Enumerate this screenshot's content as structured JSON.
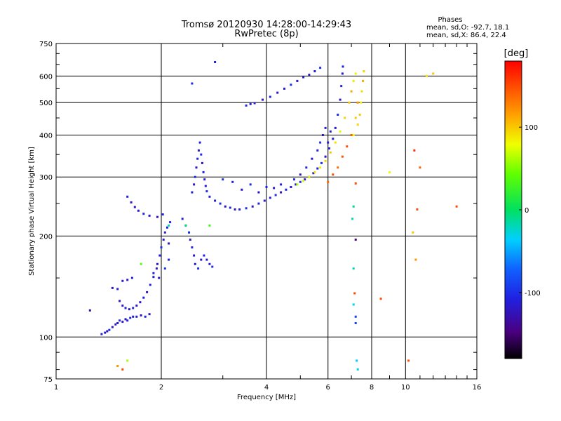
{
  "chart_data": {
    "type": "scatter",
    "title": "Tromsø 20120930 14:28:00-14:29:43",
    "subtitle": "RwPretec (8p)",
    "xlabel": "Frequency [MHz]",
    "ylabel": "Stationary phase Virtual Height [km]",
    "x_scale": "log",
    "y_scale": "log",
    "xlim": [
      1,
      16
    ],
    "ylim": [
      75,
      750
    ],
    "x_ticks": [
      1,
      2,
      4,
      6,
      8,
      10,
      16
    ],
    "x_tick_labels": [
      "1",
      "2",
      "4",
      "6",
      "8",
      "10",
      "16"
    ],
    "y_ticks": [
      75,
      100,
      200,
      300,
      400,
      500,
      600,
      750
    ],
    "y_tick_labels": [
      "75",
      "100",
      "200",
      "300",
      "400",
      "500",
      "600",
      "750"
    ],
    "grid": true,
    "stats": {
      "heading": "Phases",
      "line_o": "mean, sd,O: -92.7, 18.1",
      "line_x": "mean, sd,X:  86.4, 22.4"
    },
    "colorbar": {
      "label": "[deg]",
      "min": -180,
      "max": 180,
      "ticks": [
        -100,
        0,
        100
      ],
      "tick_labels": [
        "-100",
        "0",
        "100"
      ]
    },
    "point_format": [
      "frequency_MHz",
      "virtual_height_km",
      "phase_deg"
    ],
    "points": [
      [
        1.25,
        120,
        -130
      ],
      [
        1.35,
        102,
        -110
      ],
      [
        1.38,
        103,
        -115
      ],
      [
        1.4,
        104,
        -120
      ],
      [
        1.42,
        105,
        -100
      ],
      [
        1.45,
        107,
        -115
      ],
      [
        1.48,
        109,
        -110
      ],
      [
        1.5,
        110,
        -120
      ],
      [
        1.52,
        112,
        -105
      ],
      [
        1.55,
        111,
        -115
      ],
      [
        1.58,
        113,
        -120
      ],
      [
        1.6,
        112,
        -110
      ],
      [
        1.63,
        114,
        -100
      ],
      [
        1.66,
        115,
        -115
      ],
      [
        1.7,
        115,
        -110
      ],
      [
        1.75,
        116,
        -120
      ],
      [
        1.8,
        115,
        -105
      ],
      [
        1.85,
        117,
        -115
      ],
      [
        1.52,
        128,
        -120
      ],
      [
        1.55,
        124,
        -115
      ],
      [
        1.58,
        122,
        -110
      ],
      [
        1.62,
        121,
        -120
      ],
      [
        1.66,
        122,
        -105
      ],
      [
        1.7,
        124,
        -115
      ],
      [
        1.74,
        127,
        -120
      ],
      [
        1.78,
        131,
        -110
      ],
      [
        1.82,
        136,
        -115
      ],
      [
        1.86,
        143,
        -105
      ],
      [
        1.9,
        151,
        -115
      ],
      [
        1.94,
        160,
        -120
      ],
      [
        1.45,
        140,
        -120
      ],
      [
        1.5,
        139,
        -115
      ],
      [
        1.55,
        147,
        -110
      ],
      [
        1.6,
        148,
        -120
      ],
      [
        1.65,
        150,
        -105
      ],
      [
        1.6,
        262,
        -110
      ],
      [
        1.64,
        252,
        -115
      ],
      [
        1.68,
        244,
        -120
      ],
      [
        1.72,
        238,
        -110
      ],
      [
        1.78,
        233,
        -105
      ],
      [
        1.85,
        230,
        -115
      ],
      [
        1.95,
        228,
        -120
      ],
      [
        2.02,
        232,
        -110
      ],
      [
        1.9,
        155,
        -105
      ],
      [
        1.95,
        165,
        -115
      ],
      [
        1.98,
        175,
        -110
      ],
      [
        2.0,
        185,
        -100
      ],
      [
        2.03,
        195,
        -120
      ],
      [
        2.05,
        205,
        -115
      ],
      [
        2.08,
        212,
        -105
      ],
      [
        2.1,
        170,
        -110
      ],
      [
        1.97,
        150,
        -115
      ],
      [
        2.05,
        160,
        -100
      ],
      [
        2.1,
        190,
        -120
      ],
      [
        2.12,
        220,
        -105
      ],
      [
        2.3,
        225,
        -110
      ],
      [
        2.35,
        215,
        -115
      ],
      [
        2.4,
        205,
        -100
      ],
      [
        2.42,
        195,
        -120
      ],
      [
        2.45,
        185,
        -105
      ],
      [
        2.48,
        175,
        -115
      ],
      [
        2.5,
        165,
        -110
      ],
      [
        2.55,
        160,
        -100
      ],
      [
        2.6,
        170,
        -120
      ],
      [
        2.65,
        175,
        -105
      ],
      [
        2.7,
        170,
        -115
      ],
      [
        2.75,
        165,
        -110
      ],
      [
        2.8,
        162,
        -100
      ],
      [
        2.45,
        270,
        -110
      ],
      [
        2.48,
        285,
        -115
      ],
      [
        2.5,
        300,
        -100
      ],
      [
        2.52,
        320,
        -120
      ],
      [
        2.54,
        340,
        -105
      ],
      [
        2.56,
        360,
        -115
      ],
      [
        2.58,
        380,
        -110
      ],
      [
        2.6,
        350,
        -100
      ],
      [
        2.62,
        330,
        -120
      ],
      [
        2.64,
        310,
        -105
      ],
      [
        2.66,
        295,
        -115
      ],
      [
        2.68,
        282,
        -110
      ],
      [
        2.7,
        272,
        -100
      ],
      [
        2.75,
        262,
        -110
      ],
      [
        2.85,
        255,
        -115
      ],
      [
        2.95,
        250,
        -100
      ],
      [
        3.05,
        245,
        -120
      ],
      [
        3.15,
        243,
        -105
      ],
      [
        3.25,
        240,
        -115
      ],
      [
        3.35,
        240,
        -110
      ],
      [
        3.5,
        242,
        -100
      ],
      [
        3.65,
        245,
        -120
      ],
      [
        3.8,
        250,
        -105
      ],
      [
        3.95,
        255,
        -115
      ],
      [
        4.1,
        260,
        -110
      ],
      [
        4.25,
        265,
        -100
      ],
      [
        4.4,
        270,
        -120
      ],
      [
        4.55,
        275,
        -105
      ],
      [
        4.7,
        280,
        -115
      ],
      [
        4.85,
        285,
        -110
      ],
      [
        5.0,
        290,
        -100
      ],
      [
        5.15,
        295,
        -120
      ],
      [
        5.3,
        300,
        -105
      ],
      [
        5.45,
        308,
        -115
      ],
      [
        5.6,
        318,
        -110
      ],
      [
        5.75,
        330,
        -100
      ],
      [
        5.9,
        345,
        -120
      ],
      [
        6.05,
        365,
        -105
      ],
      [
        6.2,
        390,
        -115
      ],
      [
        6.3,
        420,
        -110
      ],
      [
        6.4,
        460,
        -100
      ],
      [
        6.5,
        510,
        -120
      ],
      [
        6.55,
        560,
        -105
      ],
      [
        6.6,
        610,
        -115
      ],
      [
        6.62,
        640,
        -110
      ],
      [
        3.0,
        295,
        -100
      ],
      [
        3.2,
        290,
        -110
      ],
      [
        3.4,
        275,
        -115
      ],
      [
        3.6,
        285,
        -100
      ],
      [
        3.8,
        270,
        -120
      ],
      [
        4.0,
        280,
        -105
      ],
      [
        4.2,
        278,
        -115
      ],
      [
        4.4,
        285,
        -110
      ],
      [
        4.8,
        295,
        -100
      ],
      [
        5.0,
        305,
        -120
      ],
      [
        5.2,
        320,
        -105
      ],
      [
        5.4,
        340,
        -115
      ],
      [
        5.6,
        360,
        -110
      ],
      [
        5.7,
        380,
        -100
      ],
      [
        5.8,
        400,
        -120
      ],
      [
        5.9,
        420,
        -105
      ],
      [
        6.0,
        380,
        -115
      ],
      [
        6.1,
        410,
        -110
      ],
      [
        3.5,
        490,
        -100
      ],
      [
        3.6,
        495,
        -110
      ],
      [
        3.7,
        498,
        -115
      ],
      [
        3.9,
        510,
        -120
      ],
      [
        4.1,
        520,
        -105
      ],
      [
        4.3,
        535,
        -115
      ],
      [
        4.5,
        550,
        -110
      ],
      [
        4.7,
        565,
        -100
      ],
      [
        4.9,
        580,
        -120
      ],
      [
        5.1,
        595,
        -105
      ],
      [
        5.3,
        605,
        -115
      ],
      [
        5.5,
        620,
        -110
      ],
      [
        5.7,
        635,
        -100
      ],
      [
        2.85,
        660,
        -110
      ],
      [
        2.45,
        570,
        -100
      ],
      [
        4.9,
        285,
        60
      ],
      [
        5.1,
        292,
        70
      ],
      [
        5.3,
        300,
        80
      ],
      [
        5.5,
        310,
        90
      ],
      [
        5.7,
        320,
        85
      ],
      [
        5.9,
        335,
        95
      ],
      [
        6.1,
        355,
        100
      ],
      [
        6.3,
        380,
        90
      ],
      [
        6.5,
        410,
        85
      ],
      [
        6.7,
        450,
        95
      ],
      [
        6.9,
        500,
        100
      ],
      [
        7.0,
        540,
        110
      ],
      [
        7.1,
        580,
        90
      ],
      [
        7.2,
        610,
        85
      ],
      [
        7.3,
        430,
        95
      ],
      [
        7.4,
        460,
        100
      ],
      [
        7.45,
        500,
        85
      ],
      [
        7.5,
        540,
        90
      ],
      [
        7.55,
        580,
        110
      ],
      [
        7.6,
        620,
        95
      ],
      [
        7.1,
        400,
        80
      ],
      [
        7.2,
        450,
        100
      ],
      [
        7.3,
        500,
        120
      ],
      [
        6.0,
        290,
        140
      ],
      [
        6.2,
        305,
        150
      ],
      [
        6.4,
        320,
        135
      ],
      [
        6.6,
        345,
        145
      ],
      [
        6.8,
        370,
        150
      ],
      [
        7.0,
        400,
        140
      ],
      [
        7.2,
        287,
        150
      ],
      [
        7.2,
        195,
        -150
      ],
      [
        7.1,
        245,
        -10
      ],
      [
        7.05,
        225,
        -20
      ],
      [
        7.15,
        135,
        150
      ],
      [
        7.1,
        125,
        -30
      ],
      [
        7.2,
        115,
        -90
      ],
      [
        7.2,
        110,
        -90
      ],
      [
        7.1,
        160,
        -20
      ],
      [
        7.25,
        85,
        -40
      ],
      [
        7.3,
        80,
        -30
      ],
      [
        8.5,
        130,
        150
      ],
      [
        9.0,
        310,
        80
      ],
      [
        10.2,
        85,
        150
      ],
      [
        10.5,
        205,
        100
      ],
      [
        10.8,
        240,
        150
      ],
      [
        11.0,
        320,
        140
      ],
      [
        11.5,
        600,
        90
      ],
      [
        12.0,
        610,
        100
      ],
      [
        14.0,
        245,
        150
      ],
      [
        10.7,
        170,
        120
      ],
      [
        10.6,
        360,
        160
      ],
      [
        1.55,
        80,
        150
      ],
      [
        1.5,
        82,
        120
      ],
      [
        1.6,
        85,
        60
      ],
      [
        2.1,
        215,
        -20
      ],
      [
        2.35,
        215,
        -10
      ],
      [
        2.75,
        215,
        30
      ],
      [
        1.75,
        165,
        40
      ]
    ]
  }
}
